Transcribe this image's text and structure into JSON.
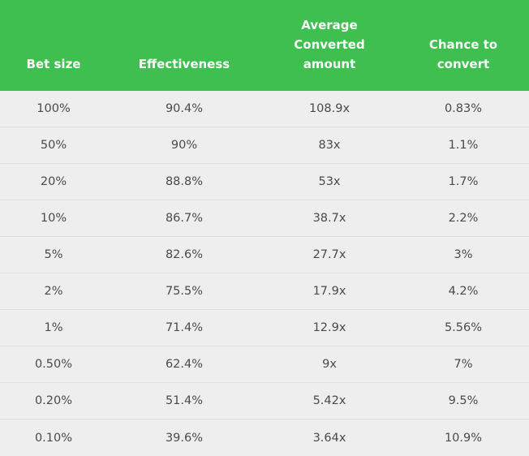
{
  "header": {
    "col0": "Bet size",
    "col1": "Effectiveness",
    "col2": "Average\nConverted\namount",
    "col3": "Chance to\nconvert"
  },
  "rows": [
    [
      "100%",
      "90.4%",
      "108.9x",
      "0.83%"
    ],
    [
      "50%",
      "90%",
      "83x",
      "1.1%"
    ],
    [
      "20%",
      "88.8%",
      "53x",
      "1.7%"
    ],
    [
      "10%",
      "86.7%",
      "38.7x",
      "2.2%"
    ],
    [
      "5%",
      "82.6%",
      "27.7x",
      "3%"
    ],
    [
      "2%",
      "75.5%",
      "17.9x",
      "4.2%"
    ],
    [
      "1%",
      "71.4%",
      "12.9x",
      "5.56%"
    ],
    [
      "0.50%",
      "62.4%",
      "9x",
      "7%"
    ],
    [
      "0.20%",
      "51.4%",
      "5.42x",
      "9.5%"
    ],
    [
      "0.10%",
      "39.6%",
      "3.64x",
      "10.9%"
    ]
  ],
  "colors": {
    "header_bg": "#3fbf4f",
    "header_text": "#ffffff",
    "row_bg": "#efeeee",
    "cell_text": "#4a4a4a",
    "divider": "#e0dfdf"
  }
}
